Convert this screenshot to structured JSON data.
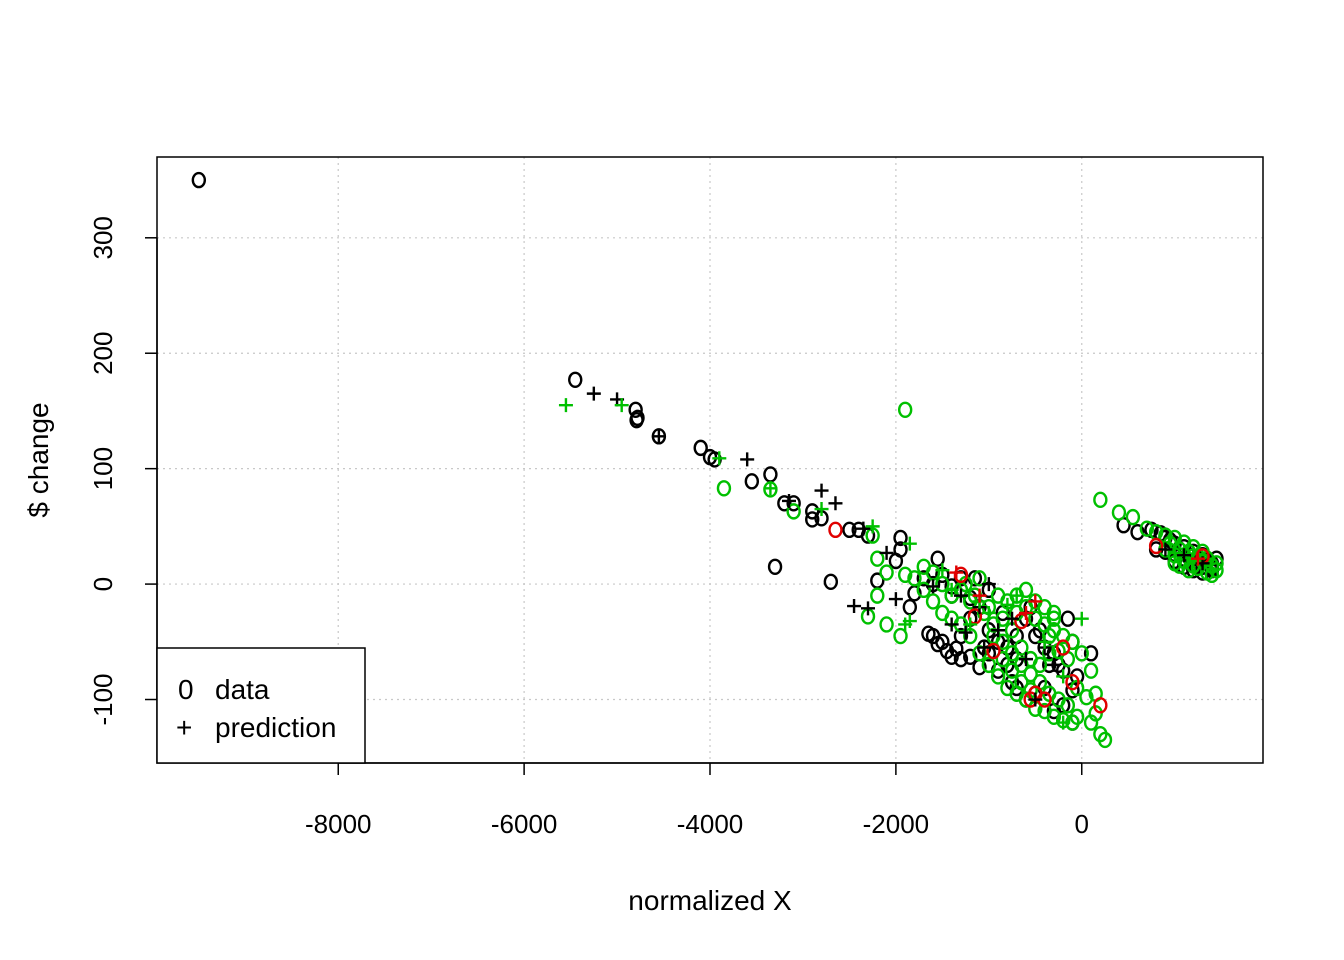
{
  "chart_data": {
    "type": "scatter",
    "xlabel": "normalized X",
    "ylabel": "$ change",
    "xlim": [
      -9950,
      1950
    ],
    "ylim": [
      -155,
      370
    ],
    "x_ticks": [
      -8000,
      -6000,
      -4000,
      -2000,
      0
    ],
    "x_tick_labels": [
      "-8000",
      "-6000",
      "-4000",
      "-2000",
      "0"
    ],
    "y_ticks": [
      -100,
      0,
      100,
      200,
      300
    ],
    "y_tick_labels": [
      "-100",
      "0",
      "100",
      "200",
      "300"
    ],
    "grid": true,
    "legend": {
      "position": "bottom-left",
      "entries": [
        {
          "symbol": "0",
          "label": "data"
        },
        {
          "symbol": "+",
          "label": "prediction"
        }
      ]
    },
    "colors": {
      "black": "#000000",
      "green": "#00c000",
      "red": "#e00000",
      "grid": "#c8c8c8"
    },
    "series": [
      {
        "marker": "o",
        "color": "black",
        "points": [
          [
            -9500,
            350
          ],
          [
            -5450,
            177
          ],
          [
            -4800,
            151
          ],
          [
            -4780,
            144
          ],
          [
            -4790,
            142
          ],
          [
            -4550,
            128
          ],
          [
            -4100,
            118
          ],
          [
            -4000,
            110
          ],
          [
            -3950,
            108
          ],
          [
            -3550,
            89
          ],
          [
            -3350,
            95
          ],
          [
            -3200,
            70
          ],
          [
            -3100,
            70
          ],
          [
            -2900,
            63
          ],
          [
            -2900,
            56
          ],
          [
            -2800,
            57
          ],
          [
            -2500,
            47
          ],
          [
            -2400,
            47
          ],
          [
            -2300,
            42
          ],
          [
            -2000,
            20
          ],
          [
            -1950,
            40
          ],
          [
            -1950,
            30
          ],
          [
            -1550,
            22
          ],
          [
            -3300,
            15
          ],
          [
            -2700,
            2
          ],
          [
            -2200,
            3
          ],
          [
            -1850,
            -20
          ],
          [
            -1800,
            -8
          ],
          [
            -1650,
            -43
          ],
          [
            -1600,
            -45
          ],
          [
            -1550,
            -52
          ],
          [
            -1500,
            -50
          ],
          [
            -1450,
            -58
          ],
          [
            -1400,
            -63
          ],
          [
            -1350,
            -56
          ],
          [
            -1300,
            -65
          ],
          [
            -1200,
            -63
          ],
          [
            -1100,
            -72
          ],
          [
            -1000,
            -60
          ],
          [
            -900,
            -75
          ],
          [
            -800,
            -70
          ],
          [
            -750,
            -85
          ],
          [
            -700,
            -90
          ],
          [
            -600,
            -100
          ],
          [
            -500,
            -95
          ],
          [
            -400,
            -90
          ],
          [
            -300,
            -110
          ],
          [
            -200,
            -105
          ],
          [
            -100,
            -120
          ],
          [
            -100,
            -92
          ],
          [
            100,
            -60
          ],
          [
            -1200,
            -30
          ],
          [
            -1100,
            -20
          ],
          [
            -1000,
            -40
          ],
          [
            -900,
            -50
          ],
          [
            -800,
            -55
          ],
          [
            -700,
            -65
          ],
          [
            -600,
            -30
          ],
          [
            -500,
            -45
          ],
          [
            -400,
            -55
          ],
          [
            -300,
            -60
          ],
          [
            -200,
            -75
          ],
          [
            -1050,
            -55
          ],
          [
            -1300,
            -45
          ],
          [
            -1400,
            -10
          ],
          [
            -1150,
            5
          ],
          [
            -1000,
            -5
          ],
          [
            -850,
            -25
          ],
          [
            -700,
            -45
          ],
          [
            -550,
            -20
          ],
          [
            -450,
            -40
          ],
          [
            -350,
            -70
          ],
          [
            -250,
            -70
          ],
          [
            -150,
            -30
          ],
          [
            -100,
            -50
          ],
          [
            -50,
            -80
          ],
          [
            -1700,
            5
          ],
          [
            -1600,
            0
          ],
          [
            -1500,
            8
          ],
          [
            -1400,
            -2
          ],
          [
            -1300,
            5
          ],
          [
            -1200,
            -12
          ],
          [
            450,
            51
          ],
          [
            600,
            45
          ],
          [
            750,
            47
          ],
          [
            850,
            44
          ],
          [
            900,
            40
          ],
          [
            950,
            38
          ],
          [
            1000,
            35
          ],
          [
            1050,
            30
          ],
          [
            1100,
            32
          ],
          [
            1150,
            25
          ],
          [
            1200,
            28
          ],
          [
            1250,
            22
          ],
          [
            1300,
            25
          ],
          [
            1350,
            20
          ],
          [
            1400,
            18
          ],
          [
            1450,
            22
          ],
          [
            1000,
            20
          ],
          [
            1100,
            15
          ],
          [
            1200,
            12
          ],
          [
            1300,
            15
          ],
          [
            1400,
            12
          ],
          [
            800,
            30
          ],
          [
            900,
            28
          ],
          [
            1000,
            26
          ],
          [
            1100,
            22
          ],
          [
            1200,
            18
          ],
          [
            1300,
            10
          ],
          [
            1400,
            14
          ]
        ]
      },
      {
        "marker": "o",
        "color": "green",
        "points": [
          [
            -1900,
            151
          ],
          [
            -3850,
            83
          ],
          [
            -3350,
            82
          ],
          [
            -3100,
            63
          ],
          [
            -2250,
            42
          ],
          [
            -2200,
            22
          ],
          [
            -2100,
            10
          ],
          [
            -1900,
            8
          ],
          [
            -1700,
            15
          ],
          [
            -1600,
            10
          ],
          [
            -1500,
            0
          ],
          [
            -1400,
            -10
          ],
          [
            -1300,
            -5
          ],
          [
            -1200,
            -15
          ],
          [
            -1100,
            5
          ],
          [
            -1000,
            -20
          ],
          [
            -900,
            -10
          ],
          [
            -800,
            -15
          ],
          [
            -700,
            -25
          ],
          [
            -600,
            -20
          ],
          [
            -500,
            -30
          ],
          [
            -400,
            -35
          ],
          [
            -300,
            -40
          ],
          [
            -200,
            -45
          ],
          [
            -100,
            -50
          ],
          [
            0,
            -60
          ],
          [
            100,
            -75
          ],
          [
            150,
            -95
          ],
          [
            -1950,
            -45
          ],
          [
            -2100,
            -35
          ],
          [
            -2300,
            -28
          ],
          [
            -2200,
            -10
          ],
          [
            -900,
            -80
          ],
          [
            -800,
            -90
          ],
          [
            -700,
            -95
          ],
          [
            -600,
            -100
          ],
          [
            -500,
            -108
          ],
          [
            -400,
            -110
          ],
          [
            -300,
            -115
          ],
          [
            -200,
            -118
          ],
          [
            -100,
            -120
          ],
          [
            100,
            -120
          ],
          [
            200,
            -130
          ],
          [
            250,
            -135
          ],
          [
            -1000,
            -70
          ],
          [
            -1100,
            -60
          ],
          [
            -1200,
            -45
          ],
          [
            -1300,
            -35
          ],
          [
            -1400,
            -30
          ],
          [
            -1500,
            -25
          ],
          [
            -1600,
            -15
          ],
          [
            -1700,
            -5
          ],
          [
            -1800,
            5
          ],
          [
            -850,
            -50
          ],
          [
            -750,
            -60
          ],
          [
            -650,
            -70
          ],
          [
            -550,
            -78
          ],
          [
            -450,
            -85
          ],
          [
            -350,
            -95
          ],
          [
            -250,
            -100
          ],
          [
            -150,
            -105
          ],
          [
            -50,
            -115
          ],
          [
            50,
            -98
          ],
          [
            150,
            -112
          ],
          [
            -950,
            -35
          ],
          [
            -850,
            -30
          ],
          [
            -750,
            -40
          ],
          [
            -650,
            -55
          ],
          [
            -550,
            -65
          ],
          [
            -450,
            -70
          ],
          [
            -350,
            -45
          ],
          [
            -250,
            -58
          ],
          [
            -150,
            -65
          ],
          [
            -50,
            -90
          ],
          [
            -1250,
            0
          ],
          [
            -1150,
            -10
          ],
          [
            -1050,
            -25
          ],
          [
            -950,
            -45
          ],
          [
            -850,
            -65
          ],
          [
            -750,
            -75
          ],
          [
            -650,
            -85
          ],
          [
            -550,
            -92
          ],
          [
            -350,
            -60
          ],
          [
            -300,
            -30
          ],
          [
            -700,
            -10
          ],
          [
            -600,
            -5
          ],
          [
            -500,
            -15
          ],
          [
            -400,
            -20
          ],
          [
            -300,
            -25
          ],
          [
            200,
            73
          ],
          [
            400,
            62
          ],
          [
            550,
            58
          ],
          [
            700,
            48
          ],
          [
            800,
            45
          ],
          [
            900,
            42
          ],
          [
            950,
            35
          ],
          [
            1000,
            40
          ],
          [
            1050,
            30
          ],
          [
            1100,
            36
          ],
          [
            1150,
            28
          ],
          [
            1200,
            32
          ],
          [
            1250,
            24
          ],
          [
            1300,
            28
          ],
          [
            1350,
            22
          ],
          [
            1400,
            16
          ],
          [
            1450,
            12
          ],
          [
            1000,
            25
          ],
          [
            1100,
            20
          ],
          [
            1200,
            16
          ],
          [
            1300,
            20
          ],
          [
            1400,
            8
          ],
          [
            900,
            30
          ],
          [
            1000,
            18
          ],
          [
            1150,
            12
          ],
          [
            1250,
            14
          ],
          [
            1350,
            10
          ],
          [
            1450,
            18
          ],
          [
            1050,
            16
          ],
          [
            1200,
            24
          ]
        ]
      },
      {
        "marker": "o",
        "color": "red",
        "points": [
          [
            -2650,
            47
          ],
          [
            -1300,
            8
          ],
          [
            -1150,
            -28
          ],
          [
            -950,
            -58
          ],
          [
            -650,
            -32
          ],
          [
            -550,
            -100
          ],
          [
            -400,
            -100
          ],
          [
            -200,
            -55
          ],
          [
            200,
            -105
          ],
          [
            800,
            33
          ],
          [
            1300,
            24
          ],
          [
            -500,
            -95
          ],
          [
            -100,
            -85
          ]
        ]
      },
      {
        "marker": "+",
        "color": "black",
        "points": [
          [
            -5250,
            165
          ],
          [
            -5000,
            160
          ],
          [
            -4550,
            128
          ],
          [
            -3600,
            108
          ],
          [
            -3150,
            72
          ],
          [
            -2800,
            81
          ],
          [
            -2650,
            70
          ],
          [
            -2350,
            48
          ],
          [
            -2100,
            27
          ],
          [
            -2450,
            -19
          ],
          [
            -2300,
            -21
          ],
          [
            -2000,
            -13
          ],
          [
            -1400,
            -35
          ],
          [
            -1250,
            -42
          ],
          [
            -1050,
            -55
          ],
          [
            -900,
            -40
          ],
          [
            -750,
            -30
          ],
          [
            -600,
            -65
          ],
          [
            -500,
            -100
          ],
          [
            -400,
            -55
          ],
          [
            -300,
            -70
          ],
          [
            -1600,
            -2
          ],
          [
            -1300,
            -10
          ],
          [
            -1100,
            -20
          ],
          [
            -1000,
            0
          ],
          [
            900,
            30
          ],
          [
            1100,
            25
          ],
          [
            1300,
            18
          ]
        ]
      },
      {
        "marker": "+",
        "color": "green",
        "points": [
          [
            -5550,
            155
          ],
          [
            -4950,
            155
          ],
          [
            -3900,
            109
          ],
          [
            -3350,
            83
          ],
          [
            -2800,
            65
          ],
          [
            -2250,
            50
          ],
          [
            -1850,
            35
          ],
          [
            -1900,
            -35
          ],
          [
            -1850,
            -32
          ],
          [
            -1500,
            12
          ],
          [
            -1400,
            -5
          ],
          [
            -1200,
            -35
          ],
          [
            -1100,
            -15
          ],
          [
            -1000,
            -25
          ],
          [
            -800,
            -18
          ],
          [
            -700,
            -10
          ],
          [
            -400,
            -50
          ],
          [
            -200,
            -80
          ],
          [
            0,
            -30
          ],
          [
            -200,
            -120
          ],
          [
            1000,
            27
          ],
          [
            1200,
            20
          ]
        ]
      },
      {
        "marker": "+",
        "color": "red",
        "points": [
          [
            -1350,
            10
          ],
          [
            -1100,
            -10
          ],
          [
            -600,
            -25
          ],
          [
            -500,
            -15
          ],
          [
            1250,
            22
          ]
        ]
      }
    ]
  }
}
